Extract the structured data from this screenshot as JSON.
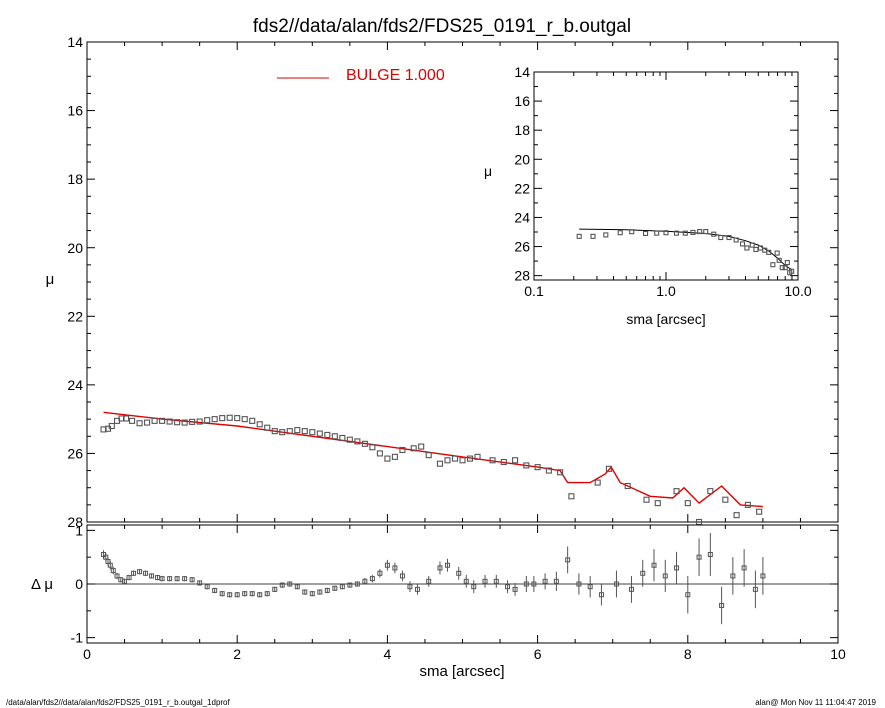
{
  "title": "fds2//data/alan/fds2/FDS25_0191_r_b.outgal",
  "footer_left": "/data/alan/fds2//data/alan/fds2/FDS25_0191_r_b.outgal_1dprof",
  "footer_right": "alan@  Mon Nov 11 11:04:47 2019",
  "colors": {
    "model": "#e00000",
    "data": "#555555",
    "axes": "#000000"
  },
  "chart_data": [
    {
      "type": "scatter",
      "panel": "main",
      "xlabel": "sma [arcsec]",
      "ylabel": "μ",
      "xlim": [
        0,
        10
      ],
      "ylim": [
        28,
        14
      ],
      "x_ticks": [
        "0",
        "2",
        "4",
        "6",
        "8",
        "10"
      ],
      "y_ticks": [
        "14",
        "16",
        "18",
        "20",
        "22",
        "24",
        "26",
        "28"
      ],
      "legend": {
        "label": "BULGE  1.000",
        "placement": "top-left"
      },
      "series": [
        {
          "name": "BULGE  1.000",
          "kind": "line",
          "points": [
            [
              0.22,
              24.8
            ],
            [
              1.0,
              25.0
            ],
            [
              2.0,
              25.2
            ],
            [
              3.0,
              25.5
            ],
            [
              4.0,
              25.8
            ],
            [
              5.0,
              26.1
            ],
            [
              6.0,
              26.4
            ],
            [
              6.3,
              26.5
            ],
            [
              6.4,
              26.85
            ],
            [
              6.7,
              26.85
            ],
            [
              6.9,
              26.6
            ],
            [
              6.98,
              26.4
            ],
            [
              7.1,
              26.85
            ],
            [
              7.5,
              27.25
            ],
            [
              7.8,
              27.3
            ],
            [
              7.95,
              27.0
            ],
            [
              8.15,
              27.45
            ],
            [
              8.45,
              26.95
            ],
            [
              8.7,
              27.5
            ],
            [
              9.0,
              27.55
            ]
          ]
        },
        {
          "kind": "markers",
          "points": [
            [
              0.22,
              25.3
            ],
            [
              0.28,
              25.28
            ],
            [
              0.33,
              25.2
            ],
            [
              0.4,
              25.05
            ],
            [
              0.46,
              24.98
            ],
            [
              0.52,
              24.98
            ],
            [
              0.6,
              25.05
            ],
            [
              0.7,
              25.12
            ],
            [
              0.8,
              25.1
            ],
            [
              0.9,
              25.05
            ],
            [
              1.0,
              25.05
            ],
            [
              1.1,
              25.07
            ],
            [
              1.2,
              25.09
            ],
            [
              1.3,
              25.1
            ],
            [
              1.4,
              25.08
            ],
            [
              1.5,
              25.07
            ],
            [
              1.6,
              25.03
            ],
            [
              1.7,
              25.0
            ],
            [
              1.8,
              24.97
            ],
            [
              1.9,
              24.96
            ],
            [
              2.0,
              24.97
            ],
            [
              2.1,
              25.0
            ],
            [
              2.2,
              25.05
            ],
            [
              2.3,
              25.15
            ],
            [
              2.4,
              25.25
            ],
            [
              2.5,
              25.35
            ],
            [
              2.6,
              25.38
            ],
            [
              2.7,
              25.35
            ],
            [
              2.8,
              25.32
            ],
            [
              2.9,
              25.35
            ],
            [
              3.0,
              25.38
            ],
            [
              3.1,
              25.42
            ],
            [
              3.2,
              25.46
            ],
            [
              3.3,
              25.5
            ],
            [
              3.4,
              25.55
            ],
            [
              3.5,
              25.6
            ],
            [
              3.6,
              25.65
            ],
            [
              3.7,
              25.72
            ],
            [
              3.8,
              25.82
            ],
            [
              3.9,
              26.0
            ],
            [
              4.0,
              26.15
            ],
            [
              4.1,
              26.1
            ],
            [
              4.2,
              25.9
            ],
            [
              4.35,
              25.85
            ],
            [
              4.45,
              25.8
            ],
            [
              4.55,
              26.05
            ],
            [
              4.7,
              26.3
            ],
            [
              4.8,
              26.2
            ],
            [
              4.9,
              26.15
            ],
            [
              5.0,
              26.2
            ],
            [
              5.1,
              26.15
            ],
            [
              5.2,
              26.1
            ],
            [
              5.4,
              26.2
            ],
            [
              5.55,
              26.25
            ],
            [
              5.7,
              26.2
            ],
            [
              5.85,
              26.35
            ],
            [
              6.0,
              26.4
            ],
            [
              6.15,
              26.5
            ],
            [
              6.3,
              26.55
            ],
            [
              6.45,
              27.25
            ],
            [
              6.8,
              26.85
            ],
            [
              6.95,
              26.45
            ],
            [
              7.2,
              26.95
            ],
            [
              7.45,
              27.35
            ],
            [
              7.6,
              27.45
            ],
            [
              7.85,
              27.1
            ],
            [
              8.0,
              27.45
            ],
            [
              8.15,
              28.0
            ],
            [
              8.3,
              27.1
            ],
            [
              8.5,
              27.35
            ],
            [
              8.65,
              27.8
            ],
            [
              8.8,
              27.5
            ],
            [
              8.95,
              27.7
            ]
          ]
        }
      ]
    },
    {
      "type": "scatter",
      "panel": "inset",
      "xlabel": "sma [arcsec]",
      "ylabel": "μ",
      "xscale": "log",
      "xlim": [
        0.1,
        10.0
      ],
      "ylim": [
        28.3,
        14
      ],
      "x_ticks": [
        "0.1",
        "1.0",
        "10.0"
      ],
      "y_ticks": [
        "14",
        "16",
        "18",
        "20",
        "22",
        "24",
        "26",
        "28"
      ],
      "series": [
        {
          "kind": "line",
          "points": [
            [
              0.22,
              24.8
            ],
            [
              0.5,
              24.85
            ],
            [
              1.0,
              24.95
            ],
            [
              2.0,
              25.1
            ],
            [
              3.0,
              25.3
            ],
            [
              4.0,
              25.6
            ],
            [
              5.0,
              25.9
            ],
            [
              6.0,
              26.3
            ],
            [
              7.0,
              26.8
            ],
            [
              8.0,
              27.3
            ],
            [
              9.0,
              27.6
            ]
          ]
        },
        {
          "kind": "markers",
          "points": [
            [
              0.22,
              25.3
            ],
            [
              0.28,
              25.3
            ],
            [
              0.35,
              25.2
            ],
            [
              0.45,
              25.05
            ],
            [
              0.55,
              24.98
            ],
            [
              0.7,
              25.1
            ],
            [
              0.85,
              25.08
            ],
            [
              1.0,
              25.05
            ],
            [
              1.2,
              25.08
            ],
            [
              1.4,
              25.08
            ],
            [
              1.6,
              25.03
            ],
            [
              1.8,
              24.97
            ],
            [
              2.0,
              24.97
            ],
            [
              2.3,
              25.15
            ],
            [
              2.6,
              25.38
            ],
            [
              3.0,
              25.38
            ],
            [
              3.4,
              25.55
            ],
            [
              3.8,
              25.82
            ],
            [
              4.1,
              26.1
            ],
            [
              4.5,
              25.9
            ],
            [
              4.8,
              26.2
            ],
            [
              5.2,
              26.1
            ],
            [
              5.6,
              26.25
            ],
            [
              6.0,
              26.4
            ],
            [
              6.45,
              27.25
            ],
            [
              6.95,
              26.45
            ],
            [
              7.2,
              26.95
            ],
            [
              7.6,
              27.45
            ],
            [
              8.0,
              27.45
            ],
            [
              8.3,
              27.1
            ],
            [
              8.65,
              27.8
            ],
            [
              8.95,
              27.7
            ]
          ]
        }
      ]
    },
    {
      "type": "scatter",
      "panel": "residual",
      "xlabel": "sma [arcsec]",
      "ylabel": "Δ μ",
      "xlim": [
        0,
        10
      ],
      "ylim": [
        -1.1,
        1.1
      ],
      "x_ticks": [
        "0",
        "2",
        "4",
        "6",
        "8",
        "10"
      ],
      "y_ticks": [
        "-1",
        "0",
        "1"
      ],
      "series": [
        {
          "kind": "markers_with_errorbars",
          "points": [
            [
              0.22,
              0.55,
              0.08
            ],
            [
              0.25,
              0.5,
              0.08
            ],
            [
              0.28,
              0.42,
              0.08
            ],
            [
              0.31,
              0.35,
              0.08
            ],
            [
              0.35,
              0.25,
              0.07
            ],
            [
              0.4,
              0.15,
              0.06
            ],
            [
              0.45,
              0.08,
              0.05
            ],
            [
              0.5,
              0.05,
              0.05
            ],
            [
              0.56,
              0.12,
              0.05
            ],
            [
              0.62,
              0.2,
              0.05
            ],
            [
              0.7,
              0.23,
              0.05
            ],
            [
              0.78,
              0.2,
              0.05
            ],
            [
              0.86,
              0.15,
              0.05
            ],
            [
              0.94,
              0.12,
              0.05
            ],
            [
              1.0,
              0.1,
              0.05
            ],
            [
              1.1,
              0.1,
              0.05
            ],
            [
              1.2,
              0.1,
              0.05
            ],
            [
              1.3,
              0.1,
              0.05
            ],
            [
              1.4,
              0.08,
              0.05
            ],
            [
              1.5,
              0.02,
              0.05
            ],
            [
              1.6,
              -0.05,
              0.05
            ],
            [
              1.7,
              -0.12,
              0.05
            ],
            [
              1.8,
              -0.18,
              0.05
            ],
            [
              1.9,
              -0.2,
              0.05
            ],
            [
              2.0,
              -0.2,
              0.05
            ],
            [
              2.1,
              -0.18,
              0.05
            ],
            [
              2.2,
              -0.18,
              0.05
            ],
            [
              2.3,
              -0.2,
              0.05
            ],
            [
              2.4,
              -0.18,
              0.05
            ],
            [
              2.5,
              -0.1,
              0.05
            ],
            [
              2.6,
              -0.02,
              0.05
            ],
            [
              2.7,
              0.0,
              0.05
            ],
            [
              2.8,
              -0.05,
              0.05
            ],
            [
              2.9,
              -0.15,
              0.05
            ],
            [
              3.0,
              -0.18,
              0.05
            ],
            [
              3.1,
              -0.15,
              0.05
            ],
            [
              3.2,
              -0.12,
              0.05
            ],
            [
              3.3,
              -0.08,
              0.05
            ],
            [
              3.4,
              -0.05,
              0.05
            ],
            [
              3.5,
              -0.02,
              0.05
            ],
            [
              3.6,
              0.0,
              0.05
            ],
            [
              3.7,
              0.05,
              0.06
            ],
            [
              3.8,
              0.1,
              0.07
            ],
            [
              3.9,
              0.2,
              0.08
            ],
            [
              4.0,
              0.35,
              0.1
            ],
            [
              4.1,
              0.3,
              0.1
            ],
            [
              4.2,
              0.15,
              0.1
            ],
            [
              4.3,
              -0.05,
              0.1
            ],
            [
              4.4,
              -0.1,
              0.1
            ],
            [
              4.55,
              0.05,
              0.1
            ],
            [
              4.7,
              0.3,
              0.12
            ],
            [
              4.8,
              0.35,
              0.12
            ],
            [
              4.95,
              0.2,
              0.12
            ],
            [
              5.05,
              0.05,
              0.12
            ],
            [
              5.15,
              -0.05,
              0.12
            ],
            [
              5.3,
              0.05,
              0.12
            ],
            [
              5.45,
              0.05,
              0.12
            ],
            [
              5.6,
              -0.05,
              0.12
            ],
            [
              5.7,
              -0.1,
              0.12
            ],
            [
              5.85,
              0.0,
              0.15
            ],
            [
              5.95,
              0.0,
              0.15
            ],
            [
              6.1,
              0.05,
              0.15
            ],
            [
              6.25,
              0.05,
              0.18
            ],
            [
              6.4,
              0.45,
              0.25
            ],
            [
              6.55,
              0.0,
              0.2
            ],
            [
              6.7,
              -0.05,
              0.2
            ],
            [
              6.85,
              -0.2,
              0.2
            ],
            [
              7.05,
              0.0,
              0.25
            ],
            [
              7.25,
              -0.1,
              0.25
            ],
            [
              7.4,
              0.2,
              0.25
            ],
            [
              7.55,
              0.35,
              0.3
            ],
            [
              7.7,
              0.15,
              0.3
            ],
            [
              7.85,
              0.3,
              0.3
            ],
            [
              8.0,
              -0.2,
              0.35
            ],
            [
              8.15,
              0.5,
              0.35
            ],
            [
              8.3,
              0.55,
              0.4
            ],
            [
              8.45,
              -0.4,
              0.35
            ],
            [
              8.6,
              0.15,
              0.35
            ],
            [
              8.75,
              0.3,
              0.35
            ],
            [
              8.9,
              -0.1,
              0.35
            ],
            [
              9.0,
              0.15,
              0.35
            ]
          ]
        }
      ]
    }
  ]
}
